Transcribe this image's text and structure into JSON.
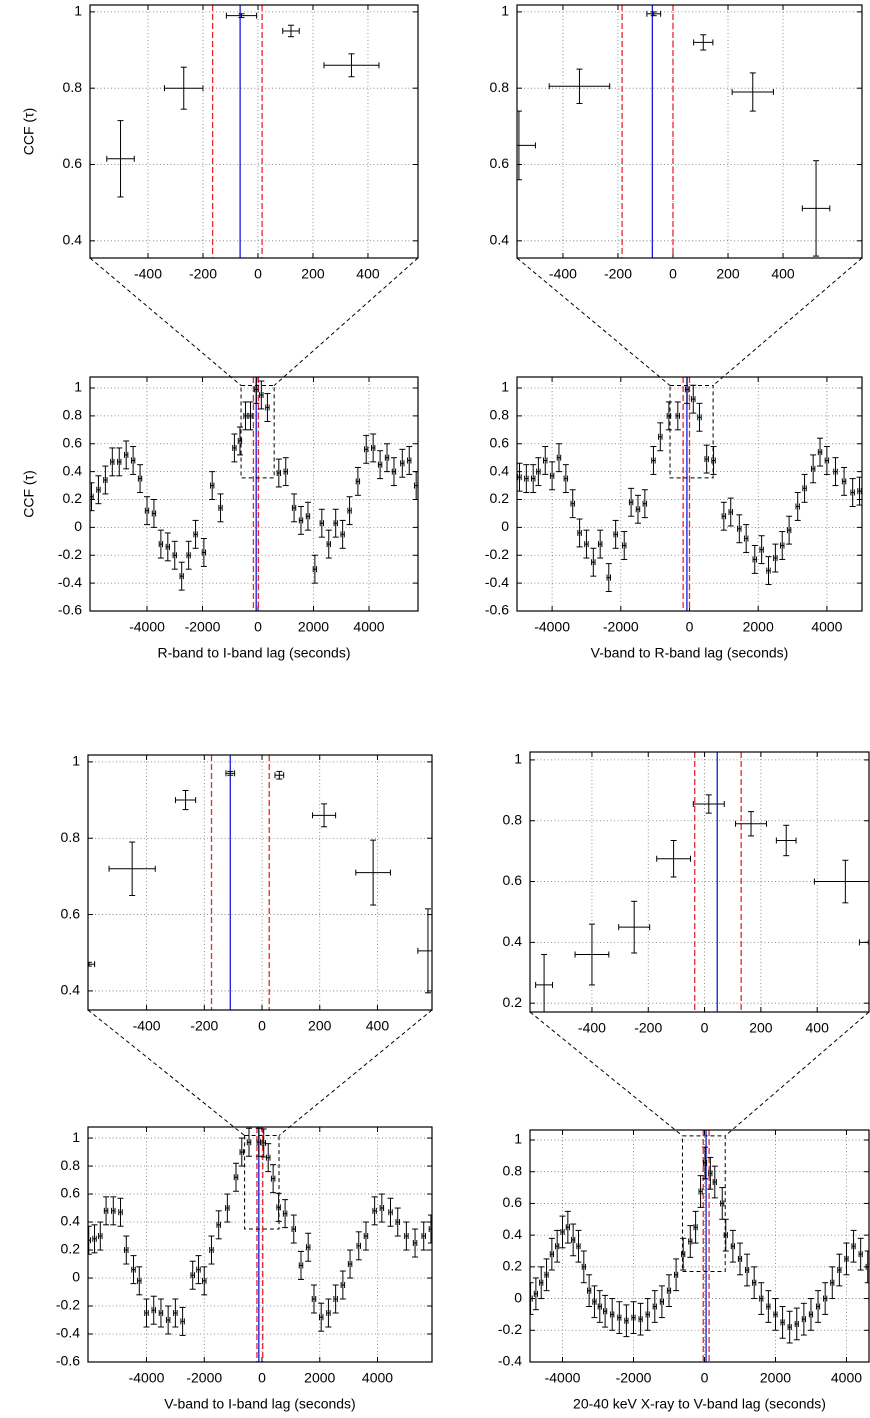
{
  "chart_data": [
    {
      "type": "errorbar",
      "ylabel": "CCF (τ)",
      "grid": true,
      "xlim": [
        -611,
        582
      ],
      "ylim": [
        0.355,
        1.018
      ],
      "xticks": [
        -400,
        -200,
        0,
        200,
        400
      ],
      "yticks": [
        0.4,
        0.6,
        0.8,
        1
      ],
      "x": [
        -500,
        -270,
        -60,
        120,
        340
      ],
      "values": [
        0.615,
        0.8,
        0.99,
        0.95,
        0.86
      ],
      "xerr": [
        50,
        70,
        55,
        30,
        100
      ],
      "yerr": [
        0.1,
        0.055,
        0.005,
        0.015,
        0.03
      ],
      "vlines": [
        {
          "x": -165,
          "color": "#e8262b",
          "dash": true
        },
        {
          "x": 15,
          "color": "#e8262b",
          "dash": true
        },
        {
          "x": -65,
          "color": "#1a1adb",
          "dash": false
        }
      ]
    },
    {
      "type": "errorbar",
      "ylabel": "CCF (τ)",
      "xlabel": "R-band to I-band lag (seconds)",
      "grid": true,
      "xlim": [
        -6054,
        5766
      ],
      "ylim": [
        -0.6,
        1.079
      ],
      "xticks": [
        -4000,
        -2000,
        0,
        2000,
        4000
      ],
      "yticks": [
        -0.6,
        -0.4,
        -0.2,
        0,
        0.2,
        0.4,
        0.6,
        0.8,
        1
      ],
      "x": [
        -6000,
        -5750,
        -5500,
        -5250,
        -5000,
        -4750,
        -4500,
        -4250,
        -4000,
        -3750,
        -3500,
        -3250,
        -3000,
        -2750,
        -2500,
        -2250,
        -1950,
        -1650,
        -1350,
        -850,
        -650,
        -450,
        -270,
        -60,
        120,
        340,
        750,
        1000,
        1300,
        1550,
        1800,
        2050,
        2300,
        2550,
        2800,
        3050,
        3300,
        3600,
        3900,
        4150,
        4400,
        4650,
        4900,
        5200,
        5450,
        5700
      ],
      "values": [
        0.22,
        0.27,
        0.34,
        0.47,
        0.47,
        0.52,
        0.48,
        0.35,
        0.12,
        0.1,
        -0.12,
        -0.14,
        -0.2,
        -0.35,
        -0.2,
        -0.05,
        -0.18,
        0.3,
        0.14,
        0.57,
        0.62,
        0.8,
        0.8,
        0.99,
        0.95,
        0.86,
        0.39,
        0.4,
        0.14,
        0.05,
        0.08,
        -0.3,
        0.03,
        -0.12,
        0.03,
        -0.05,
        0.12,
        0.33,
        0.56,
        0.57,
        0.45,
        0.5,
        0.4,
        0.46,
        0.48,
        0.3
      ],
      "xerr": 60,
      "yerr": 0.1,
      "vlines": [
        {
          "x": -165,
          "color": "#e8262b",
          "dash": true
        },
        {
          "x": 15,
          "color": "#e8262b",
          "dash": true
        },
        {
          "x": -65,
          "color": "#1a1adb",
          "dash": false
        }
      ]
    },
    {
      "type": "errorbar",
      "grid": true,
      "xlim": [
        -567,
        687
      ],
      "ylim": [
        0.355,
        1.018
      ],
      "xticks": [
        -400,
        -200,
        0,
        200,
        400
      ],
      "yticks": [
        0.4,
        0.6,
        0.8,
        1
      ],
      "x": [
        -560,
        -340,
        -70,
        110,
        290,
        520
      ],
      "values": [
        0.65,
        0.805,
        0.995,
        0.92,
        0.79,
        0.485
      ],
      "xerr": [
        60,
        110,
        25,
        35,
        75,
        50
      ],
      "yerr": [
        0.09,
        0.045,
        0.005,
        0.02,
        0.05,
        0.125
      ],
      "vlines": [
        {
          "x": -185,
          "color": "#e8262b",
          "dash": true
        },
        {
          "x": 0,
          "color": "#e8262b",
          "dash": true
        },
        {
          "x": -75,
          "color": "#1a1adb",
          "dash": false
        }
      ]
    },
    {
      "type": "errorbar",
      "xlabel": "V-band to R-band lag (seconds)",
      "grid": true,
      "xlim": [
        -5022,
        5022
      ],
      "ylim": [
        -0.6,
        1.079
      ],
      "xticks": [
        -4000,
        -2000,
        0,
        2000,
        4000
      ],
      "yticks": [
        -0.6,
        -0.4,
        -0.2,
        0,
        0.2,
        0.4,
        0.6,
        0.8,
        1
      ],
      "x": [
        -4950,
        -4750,
        -4550,
        -4400,
        -4200,
        -4000,
        -3800,
        -3600,
        -3400,
        -3200,
        -3000,
        -2800,
        -2600,
        -2350,
        -2150,
        -1900,
        -1700,
        -1500,
        -1300,
        -1050,
        -850,
        -600,
        -340,
        -70,
        110,
        290,
        500,
        700,
        1000,
        1200,
        1450,
        1650,
        1900,
        2100,
        2300,
        2500,
        2700,
        2900,
        3150,
        3350,
        3600,
        3800,
        4000,
        4250,
        4500,
        4750,
        4950
      ],
      "values": [
        0.36,
        0.35,
        0.35,
        0.4,
        0.48,
        0.37,
        0.5,
        0.35,
        0.17,
        -0.04,
        -0.12,
        -0.25,
        -0.12,
        -0.36,
        -0.05,
        -0.13,
        0.18,
        0.13,
        0.17,
        0.48,
        0.65,
        0.8,
        0.8,
        0.99,
        0.92,
        0.79,
        0.49,
        0.48,
        0.08,
        0.11,
        -0.01,
        -0.08,
        -0.23,
        -0.16,
        -0.31,
        -0.22,
        -0.13,
        -0.02,
        0.15,
        0.28,
        0.42,
        0.54,
        0.48,
        0.4,
        0.33,
        0.25,
        0.26
      ],
      "xerr": 50,
      "yerr": 0.1,
      "vlines": [
        {
          "x": -185,
          "color": "#e8262b",
          "dash": true
        },
        {
          "x": 0,
          "color": "#e8262b",
          "dash": true
        },
        {
          "x": -75,
          "color": "#1a1adb",
          "dash": false
        }
      ]
    },
    {
      "type": "errorbar",
      "grid": true,
      "xlim": [
        -603,
        589
      ],
      "ylim": [
        0.35,
        1.018
      ],
      "xticks": [
        -400,
        -200,
        0,
        200,
        400
      ],
      "yticks": [
        0.4,
        0.6,
        0.8,
        1
      ],
      "x": [
        -600,
        -450,
        -265,
        -110,
        60,
        215,
        385,
        575
      ],
      "values": [
        0.47,
        0.72,
        0.9,
        0.97,
        0.965,
        0.86,
        0.71,
        0.505
      ],
      "xerr": [
        20,
        80,
        35,
        15,
        15,
        40,
        60,
        35
      ],
      "yerr": [
        0.005,
        0.07,
        0.025,
        0.005,
        0.01,
        0.03,
        0.085,
        0.11
      ],
      "vlines": [
        {
          "x": -175,
          "color": "#e8262b",
          "dash": true
        },
        {
          "x": 25,
          "color": "#e8262b",
          "dash": true
        },
        {
          "x": -110,
          "color": "#1a1adb",
          "dash": false
        }
      ]
    },
    {
      "type": "errorbar",
      "xlabel": "V-band to I-band lag (seconds)",
      "grid": true,
      "xlim": [
        -6026,
        5887
      ],
      "ylim": [
        -0.6,
        1.079
      ],
      "xticks": [
        -4000,
        -2000,
        0,
        2000,
        4000
      ],
      "yticks": [
        -0.6,
        -0.4,
        -0.2,
        0,
        0.2,
        0.4,
        0.6,
        0.8,
        1
      ],
      "x": [
        -6000,
        -5800,
        -5600,
        -5400,
        -5150,
        -4900,
        -4700,
        -4450,
        -4250,
        -4000,
        -3750,
        -3500,
        -3250,
        -3000,
        -2750,
        -2400,
        -2200,
        -2000,
        -1750,
        -1500,
        -1200,
        -900,
        -700,
        -450,
        -110,
        60,
        215,
        385,
        575,
        800,
        1100,
        1350,
        1600,
        1800,
        2050,
        2300,
        2550,
        2800,
        3050,
        3350,
        3600,
        3900,
        4150,
        4450,
        4700,
        5000,
        5300,
        5600,
        5850
      ],
      "values": [
        0.27,
        0.28,
        0.3,
        0.48,
        0.48,
        0.47,
        0.2,
        0.06,
        -0.02,
        -0.25,
        -0.23,
        -0.25,
        -0.3,
        -0.25,
        -0.31,
        0.02,
        0.06,
        -0.02,
        0.2,
        0.38,
        0.5,
        0.72,
        0.9,
        0.97,
        0.97,
        0.965,
        0.86,
        0.71,
        0.505,
        0.46,
        0.35,
        0.09,
        0.22,
        -0.15,
        -0.28,
        -0.25,
        -0.15,
        -0.05,
        0.1,
        0.23,
        0.3,
        0.48,
        0.5,
        0.47,
        0.4,
        0.3,
        0.25,
        0.3,
        0.35
      ],
      "xerr": 60,
      "yerr": 0.1,
      "vlines": [
        {
          "x": -175,
          "color": "#e8262b",
          "dash": true
        },
        {
          "x": 25,
          "color": "#e8262b",
          "dash": true
        },
        {
          "x": -110,
          "color": "#1a1adb",
          "dash": false
        }
      ]
    },
    {
      "type": "errorbar",
      "grid": true,
      "xlim": [
        -620,
        584
      ],
      "ylim": [
        0.171,
        1.026
      ],
      "xticks": [
        -400,
        -200,
        0,
        200,
        400
      ],
      "yticks": [
        0.2,
        0.4,
        0.6,
        0.8,
        1
      ],
      "x": [
        -570,
        -400,
        -250,
        -110,
        15,
        165,
        290,
        500,
        590
      ],
      "values": [
        0.26,
        0.36,
        0.45,
        0.675,
        0.855,
        0.79,
        0.735,
        0.6,
        0.4
      ],
      "xerr": [
        30,
        60,
        55,
        60,
        55,
        55,
        35,
        110,
        40
      ],
      "yerr": [
        0.1,
        0.1,
        0.085,
        0.06,
        0.03,
        0.04,
        0.05,
        0.07,
        0.005
      ],
      "vlines": [
        {
          "x": -35,
          "color": "#e8262b",
          "dash": true
        },
        {
          "x": 130,
          "color": "#e8262b",
          "dash": true
        },
        {
          "x": 45,
          "color": "#1a1adb",
          "dash": false
        }
      ]
    },
    {
      "type": "errorbar",
      "xlabel": "20-40 keV X-ray to V-band lag (seconds)",
      "grid": true,
      "xlim": [
        -4916,
        4635
      ],
      "ylim": [
        -0.4,
        1.063
      ],
      "xticks": [
        -4000,
        -2000,
        0,
        2000,
        4000
      ],
      "yticks": [
        -0.4,
        -0.2,
        0,
        0.2,
        0.4,
        0.6,
        0.8,
        1
      ],
      "x": [
        -4900,
        -4750,
        -4600,
        -4450,
        -4300,
        -4150,
        -4000,
        -3850,
        -3700,
        -3550,
        -3400,
        -3250,
        -3100,
        -2950,
        -2800,
        -2600,
        -2400,
        -2200,
        -2000,
        -1800,
        -1600,
        -1400,
        -1200,
        -1000,
        -800,
        -600,
        -400,
        -250,
        -110,
        15,
        165,
        290,
        500,
        600,
        800,
        1000,
        1200,
        1400,
        1600,
        1800,
        2000,
        2200,
        2400,
        2600,
        2800,
        3000,
        3200,
        3400,
        3600,
        3800,
        4000,
        4200,
        4400,
        4600
      ],
      "values": [
        0,
        0.03,
        0.1,
        0.15,
        0.28,
        0.33,
        0.42,
        0.45,
        0.37,
        0.33,
        0.2,
        0.05,
        -0.02,
        -0.05,
        -0.08,
        -0.1,
        -0.12,
        -0.14,
        -0.12,
        -0.13,
        -0.1,
        -0.05,
        -0.02,
        0.05,
        0.15,
        0.28,
        0.36,
        0.45,
        0.675,
        0.855,
        0.79,
        0.735,
        0.6,
        0.4,
        0.33,
        0.25,
        0.18,
        0.1,
        0,
        -0.05,
        -0.1,
        -0.15,
        -0.18,
        -0.16,
        -0.13,
        -0.1,
        -0.05,
        0,
        0.1,
        0.18,
        0.25,
        0.33,
        0.28,
        0.2
      ],
      "xerr": 45,
      "yerr": 0.1,
      "vlines": [
        {
          "x": -35,
          "color": "#e8262b",
          "dash": true
        },
        {
          "x": 130,
          "color": "#e8262b",
          "dash": true
        },
        {
          "x": 45,
          "color": "#1a1adb",
          "dash": false
        }
      ]
    }
  ]
}
